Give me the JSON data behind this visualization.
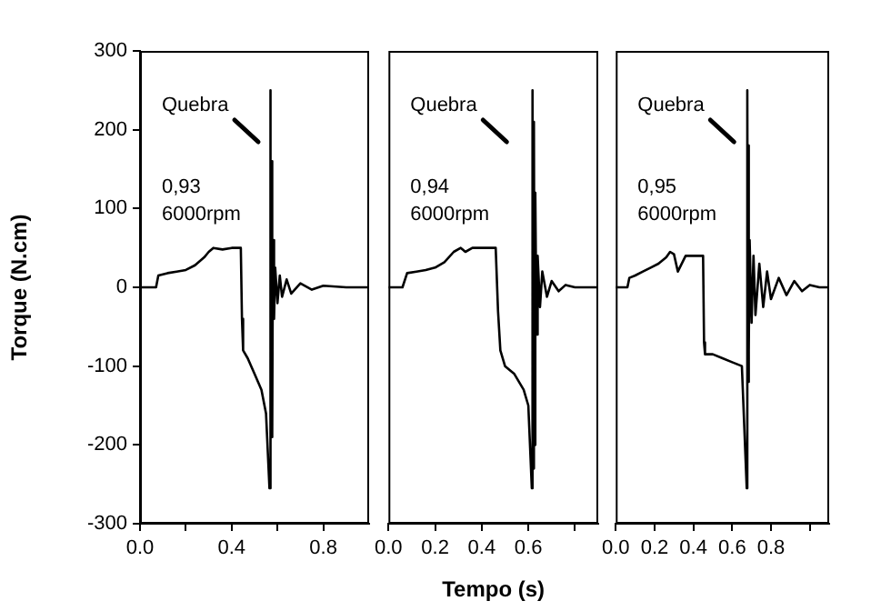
{
  "chart_data": [
    {
      "type": "line",
      "ylabel": "Torque (N.cm)",
      "color": "#000000",
      "marker": "none",
      "line_style": "solid",
      "xlim": [
        0,
        1.0
      ],
      "xticks": [
        {
          "value": 0,
          "label": "0.0"
        },
        {
          "value": 0.2,
          "label": null
        },
        {
          "value": 0.4,
          "label": "0.4"
        },
        {
          "value": 0.6,
          "label": null
        },
        {
          "value": 0.8,
          "label": "0.8"
        }
      ],
      "ylim": [
        -300,
        300
      ],
      "yticks": [
        -300,
        -200,
        -100,
        0,
        100,
        200,
        300
      ],
      "annotations": [
        "Quebra",
        "0,93",
        "6000rpm"
      ],
      "x": [
        0,
        0.07,
        0.08,
        0.12,
        0.16,
        0.2,
        0.24,
        0.28,
        0.3,
        0.32,
        0.36,
        0.4,
        0.44,
        0.445,
        0.45,
        0.47,
        0.5,
        0.53,
        0.55,
        0.565,
        0.568,
        0.571,
        0.574,
        0.577,
        0.58,
        0.585,
        0.59,
        0.6,
        0.61,
        0.62,
        0.64,
        0.66,
        0.7,
        0.75,
        0.8,
        0.9,
        1.0
      ],
      "values": [
        0,
        0,
        15,
        18,
        20,
        22,
        28,
        38,
        45,
        50,
        48,
        50,
        50,
        -40,
        -80,
        -90,
        -110,
        -130,
        -160,
        -255,
        250,
        -200,
        160,
        -190,
        60,
        -40,
        25,
        -20,
        15,
        -12,
        10,
        -8,
        5,
        -3,
        2,
        0,
        0
      ]
    },
    {
      "type": "line",
      "xlabel": "Tempo (s)",
      "color": "#000000",
      "marker": "none",
      "line_style": "solid",
      "tick_labels": "x",
      "xlim": [
        0,
        0.9
      ],
      "xticks": [
        {
          "value": 0,
          "label": "0.0"
        },
        0.2,
        0.4,
        0.6,
        {
          "value": 0.8,
          "label": null
        }
      ],
      "ylim": [
        -300,
        300
      ],
      "annotations": [
        "Quebra",
        "0,94",
        "6000rpm"
      ],
      "x": [
        0,
        0.06,
        0.08,
        0.12,
        0.16,
        0.2,
        0.24,
        0.28,
        0.31,
        0.33,
        0.36,
        0.4,
        0.46,
        0.47,
        0.48,
        0.5,
        0.54,
        0.58,
        0.6,
        0.615,
        0.618,
        0.621,
        0.624,
        0.627,
        0.63,
        0.635,
        0.64,
        0.65,
        0.66,
        0.68,
        0.7,
        0.73,
        0.76,
        0.8,
        0.9
      ],
      "values": [
        0,
        0,
        18,
        20,
        22,
        25,
        32,
        45,
        50,
        45,
        50,
        50,
        50,
        -30,
        -80,
        -100,
        -110,
        -130,
        -150,
        -255,
        250,
        -230,
        210,
        -200,
        120,
        -60,
        40,
        -25,
        20,
        -12,
        8,
        -5,
        3,
        0,
        0
      ]
    },
    {
      "type": "line",
      "color": "#000000",
      "marker": "none",
      "line_style": "solid",
      "tick_labels": "x",
      "xlim": [
        0,
        1.1
      ],
      "xticks": [
        {
          "value": 0,
          "label": "0.0"
        },
        0.2,
        0.4,
        0.6,
        0.8,
        {
          "value": 1.0,
          "label": null
        }
      ],
      "ylim": [
        -300,
        300
      ],
      "annotations": [
        "Quebra",
        "0,95",
        "6000rpm"
      ],
      "x": [
        0,
        0.06,
        0.07,
        0.1,
        0.14,
        0.18,
        0.22,
        0.26,
        0.28,
        0.3,
        0.32,
        0.36,
        0.4,
        0.45,
        0.455,
        0.46,
        0.5,
        0.55,
        0.6,
        0.65,
        0.675,
        0.678,
        0.681,
        0.684,
        0.687,
        0.69,
        0.7,
        0.71,
        0.72,
        0.74,
        0.76,
        0.78,
        0.8,
        0.84,
        0.88,
        0.92,
        0.96,
        1.0,
        1.05,
        1.1
      ],
      "values": [
        0,
        0,
        12,
        15,
        20,
        25,
        30,
        38,
        45,
        42,
        20,
        40,
        40,
        40,
        -70,
        -85,
        -85,
        -90,
        -95,
        -100,
        -255,
        250,
        -120,
        180,
        -80,
        60,
        -45,
        40,
        -35,
        30,
        -25,
        20,
        -15,
        12,
        -10,
        8,
        -5,
        3,
        0,
        0
      ]
    }
  ]
}
